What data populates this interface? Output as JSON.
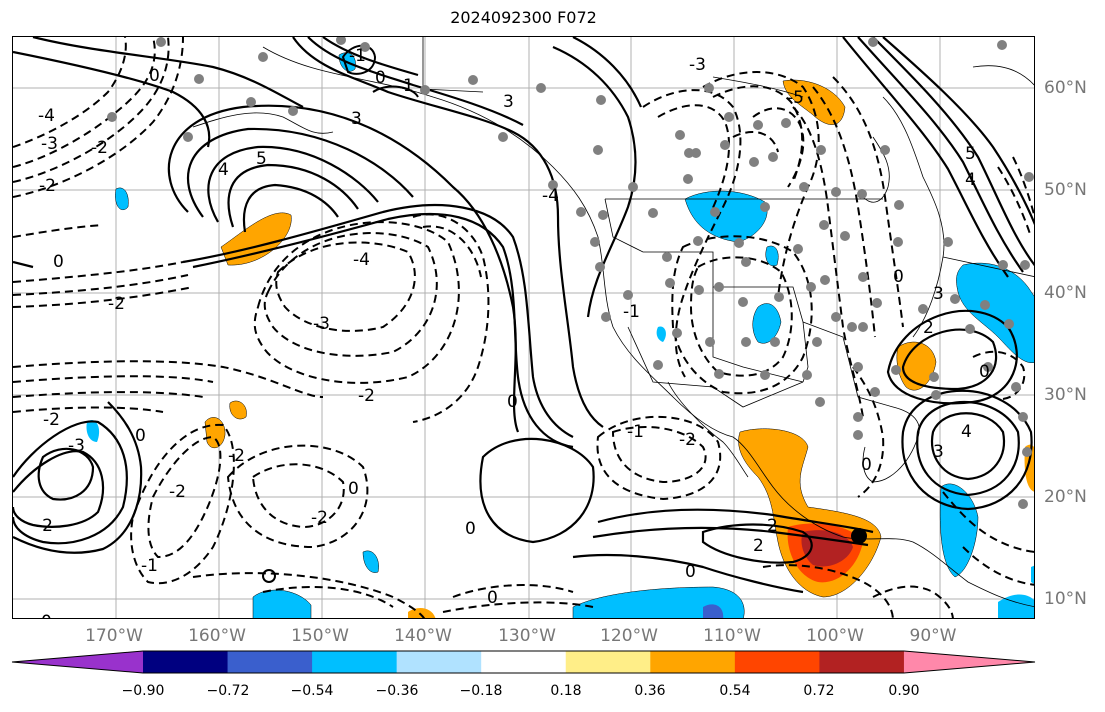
{
  "title": "2024092300 F072",
  "lon_labels": [
    "170°W",
    "160°W",
    "150°W",
    "140°W",
    "130°W",
    "120°W",
    "110°W",
    "100°W",
    "90°W"
  ],
  "lat_labels": [
    "60°N",
    "50°N",
    "40°N",
    "30°N",
    "20°N",
    "10°N"
  ],
  "colorbar": {
    "ticks": [
      "−0.90",
      "−0.72",
      "−0.54",
      "−0.36",
      "−0.18",
      "0.18",
      "0.36",
      "0.54",
      "0.72",
      "0.90"
    ],
    "colors": [
      "#9932cc",
      "#000080",
      "#3a5fcd",
      "#00bfff",
      "#b0e2ff",
      "#ffffff",
      "#ffee88",
      "#ffa500",
      "#ff4500",
      "#b22222",
      "#ff88aa"
    ]
  },
  "contour_labels": [
    {
      "text": "0",
      "cls": "a"
    },
    {
      "text": "-1",
      "cls": "b"
    },
    {
      "text": "0",
      "cls": "c"
    },
    {
      "text": "1",
      "cls": "d"
    },
    {
      "text": "3",
      "cls": "e"
    },
    {
      "text": "3",
      "cls": "f"
    },
    {
      "text": "4",
      "cls": "g"
    },
    {
      "text": "5",
      "cls": "h"
    },
    {
      "text": "-4",
      "cls": "i"
    },
    {
      "text": "-3",
      "cls": "j"
    },
    {
      "text": "-2",
      "cls": "k"
    },
    {
      "text": "-2",
      "cls": "l"
    },
    {
      "text": "0",
      "cls": "m"
    },
    {
      "text": "-2",
      "cls": "n"
    },
    {
      "text": "-4",
      "cls": "o"
    },
    {
      "text": "-3",
      "cls": "p"
    },
    {
      "text": "-2",
      "cls": "q"
    },
    {
      "text": "0",
      "cls": "r"
    },
    {
      "text": "-2",
      "cls": "s"
    },
    {
      "text": "-3",
      "cls": "t"
    },
    {
      "text": "-2",
      "cls": "u"
    },
    {
      "text": "-2",
      "cls": "v"
    },
    {
      "text": "0",
      "cls": "w"
    },
    {
      "text": "-2",
      "cls": "x"
    },
    {
      "text": "-1",
      "cls": "y"
    },
    {
      "text": "0",
      "cls": "z"
    },
    {
      "text": "0",
      "cls": "aa"
    },
    {
      "text": "-2",
      "cls": "ab"
    },
    {
      "text": "2",
      "cls": "ac"
    },
    {
      "text": "2",
      "cls": "ad"
    },
    {
      "text": "0",
      "cls": "ae"
    },
    {
      "text": "-2",
      "cls": "af"
    },
    {
      "text": "-1",
      "cls": "ag"
    },
    {
      "text": "4",
      "cls": "ah"
    },
    {
      "text": "3",
      "cls": "ai"
    },
    {
      "text": "0",
      "cls": "aj"
    },
    {
      "text": "3",
      "cls": "ak"
    },
    {
      "text": "5",
      "cls": "al"
    },
    {
      "text": "4",
      "cls": "am"
    },
    {
      "text": "2",
      "cls": "an"
    },
    {
      "text": "0",
      "cls": "ao"
    },
    {
      "text": "0",
      "cls": "ap"
    },
    {
      "text": "-5",
      "cls": "aq"
    },
    {
      "text": "-3",
      "cls": "ar"
    },
    {
      "text": "-4",
      "cls": "as"
    },
    {
      "text": "0",
      "cls": "at"
    },
    {
      "text": "-1",
      "cls": "au"
    },
    {
      "text": "0",
      "cls": "av"
    }
  ]
}
